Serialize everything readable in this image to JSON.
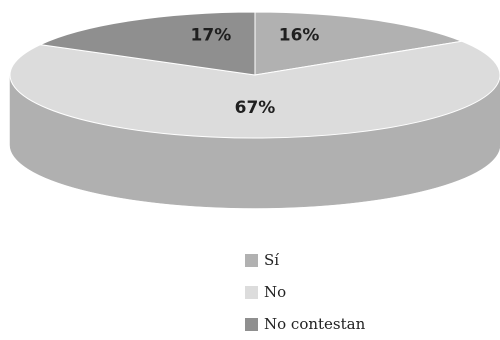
{
  "chart_data": {
    "type": "pie",
    "style": "3d",
    "slices": [
      {
        "label": "Sí",
        "value": 16,
        "display": "16%",
        "color": "#b1b1b1"
      },
      {
        "label": "No",
        "value": 67,
        "display": "67%",
        "color": "#dcdcdc"
      },
      {
        "label": "No contestan",
        "value": 17,
        "display": "17%",
        "color": "#8f8f8f"
      }
    ],
    "legend_position": "bottom"
  }
}
